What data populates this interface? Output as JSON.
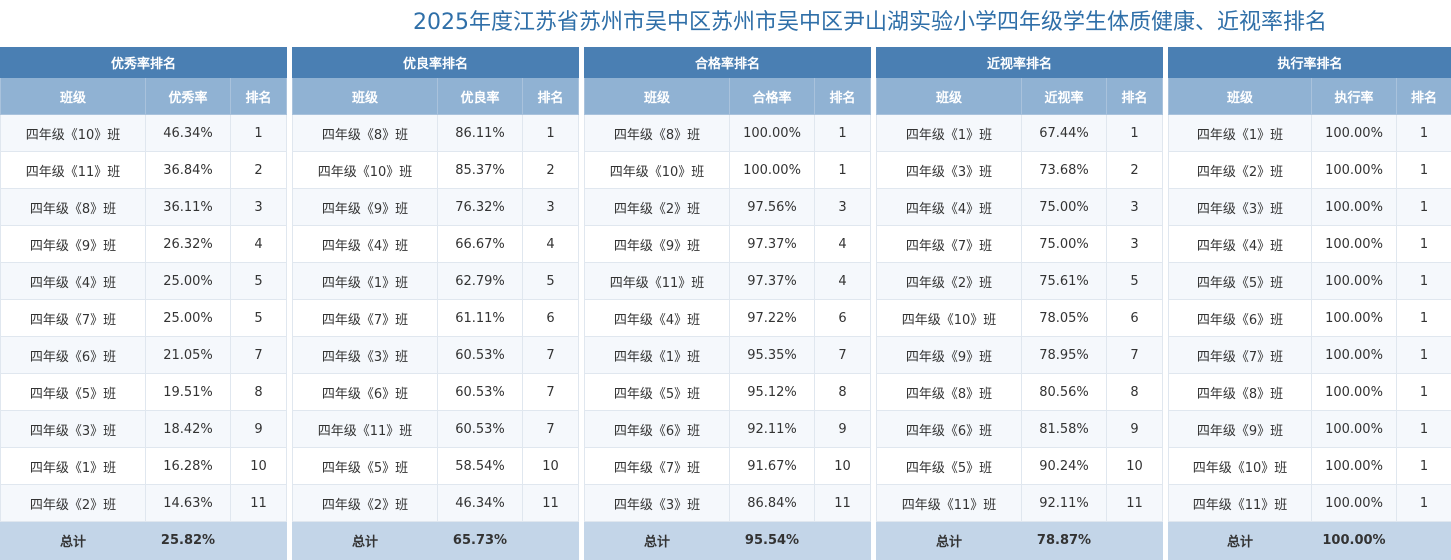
{
  "title": "2025年度江苏省苏州市吴中区苏州市吴中区尹山湖实验小学四年级学生体质健康、近视率排名",
  "tables": [
    {
      "caption": "优秀率排名",
      "headers": [
        "班级",
        "优秀率",
        "排名"
      ],
      "rows": [
        [
          "四年级《10》班",
          "46.34%",
          1
        ],
        [
          "四年级《11》班",
          "36.84%",
          2
        ],
        [
          "四年级《8》班",
          "36.11%",
          3
        ],
        [
          "四年级《9》班",
          "26.32%",
          4
        ],
        [
          "四年级《4》班",
          "25.00%",
          5
        ],
        [
          "四年级《7》班",
          "25.00%",
          5
        ],
        [
          "四年级《6》班",
          "21.05%",
          7
        ],
        [
          "四年级《5》班",
          "19.51%",
          8
        ],
        [
          "四年级《3》班",
          "18.42%",
          9
        ],
        [
          "四年级《1》班",
          "16.28%",
          10
        ],
        [
          "四年级《2》班",
          "14.63%",
          11
        ]
      ],
      "total": [
        "总计",
        "25.82%"
      ]
    },
    {
      "caption": "优良率排名",
      "headers": [
        "班级",
        "优良率",
        "排名"
      ],
      "rows": [
        [
          "四年级《8》班",
          "86.11%",
          1
        ],
        [
          "四年级《10》班",
          "85.37%",
          2
        ],
        [
          "四年级《9》班",
          "76.32%",
          3
        ],
        [
          "四年级《4》班",
          "66.67%",
          4
        ],
        [
          "四年级《1》班",
          "62.79%",
          5
        ],
        [
          "四年级《7》班",
          "61.11%",
          6
        ],
        [
          "四年级《3》班",
          "60.53%",
          7
        ],
        [
          "四年级《6》班",
          "60.53%",
          7
        ],
        [
          "四年级《11》班",
          "60.53%",
          7
        ],
        [
          "四年级《5》班",
          "58.54%",
          10
        ],
        [
          "四年级《2》班",
          "46.34%",
          11
        ]
      ],
      "total": [
        "总计",
        "65.73%"
      ]
    },
    {
      "caption": "合格率排名",
      "headers": [
        "班级",
        "合格率",
        "排名"
      ],
      "rows": [
        [
          "四年级《8》班",
          "100.00%",
          1
        ],
        [
          "四年级《10》班",
          "100.00%",
          1
        ],
        [
          "四年级《2》班",
          "97.56%",
          3
        ],
        [
          "四年级《9》班",
          "97.37%",
          4
        ],
        [
          "四年级《11》班",
          "97.37%",
          4
        ],
        [
          "四年级《4》班",
          "97.22%",
          6
        ],
        [
          "四年级《1》班",
          "95.35%",
          7
        ],
        [
          "四年级《5》班",
          "95.12%",
          8
        ],
        [
          "四年级《6》班",
          "92.11%",
          9
        ],
        [
          "四年级《7》班",
          "91.67%",
          10
        ],
        [
          "四年级《3》班",
          "86.84%",
          11
        ]
      ],
      "total": [
        "总计",
        "95.54%"
      ]
    },
    {
      "caption": "近视率排名",
      "headers": [
        "班级",
        "近视率",
        "排名"
      ],
      "rows": [
        [
          "四年级《1》班",
          "67.44%",
          1
        ],
        [
          "四年级《3》班",
          "73.68%",
          2
        ],
        [
          "四年级《4》班",
          "75.00%",
          3
        ],
        [
          "四年级《7》班",
          "75.00%",
          3
        ],
        [
          "四年级《2》班",
          "75.61%",
          5
        ],
        [
          "四年级《10》班",
          "78.05%",
          6
        ],
        [
          "四年级《9》班",
          "78.95%",
          7
        ],
        [
          "四年级《8》班",
          "80.56%",
          8
        ],
        [
          "四年级《6》班",
          "81.58%",
          9
        ],
        [
          "四年级《5》班",
          "90.24%",
          10
        ],
        [
          "四年级《11》班",
          "92.11%",
          11
        ]
      ],
      "total": [
        "总计",
        "78.87%"
      ]
    },
    {
      "caption": "执行率排名",
      "headers": [
        "班级",
        "执行率",
        "排名"
      ],
      "rows": [
        [
          "四年级《1》班",
          "100.00%",
          1
        ],
        [
          "四年级《2》班",
          "100.00%",
          1
        ],
        [
          "四年级《3》班",
          "100.00%",
          1
        ],
        [
          "四年级《4》班",
          "100.00%",
          1
        ],
        [
          "四年级《5》班",
          "100.00%",
          1
        ],
        [
          "四年级《6》班",
          "100.00%",
          1
        ],
        [
          "四年级《7》班",
          "100.00%",
          1
        ],
        [
          "四年级《8》班",
          "100.00%",
          1
        ],
        [
          "四年级《9》班",
          "100.00%",
          1
        ],
        [
          "四年级《10》班",
          "100.00%",
          1
        ],
        [
          "四年级《11》班",
          "100.00%",
          1
        ]
      ],
      "total": [
        "总计",
        "100.00%"
      ]
    }
  ]
}
